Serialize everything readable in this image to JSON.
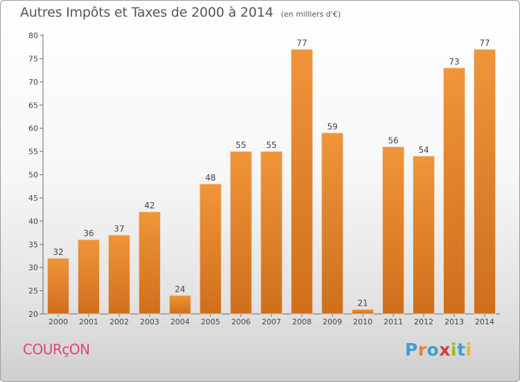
{
  "chart_data": {
    "type": "bar",
    "title": "Autres Impôts et Taxes de 2000 à 2014",
    "subtitle": "(en milliers d'€)",
    "categories": [
      "2000",
      "2001",
      "2002",
      "2003",
      "2004",
      "2005",
      "2006",
      "2007",
      "2008",
      "2009",
      "2010",
      "2011",
      "2012",
      "2013",
      "2014"
    ],
    "values": [
      32,
      36,
      37,
      42,
      24,
      48,
      55,
      55,
      77,
      59,
      21,
      56,
      54,
      73,
      77
    ],
    "data_labels": [
      "32",
      "36",
      "37",
      "42",
      "24",
      "48",
      "55",
      "55",
      "77",
      "59",
      "21",
      "56",
      "54",
      "73",
      "77"
    ],
    "ylim": [
      20,
      80
    ],
    "yticks": [
      20,
      25,
      30,
      35,
      40,
      45,
      50,
      55,
      60,
      65,
      70,
      75,
      80
    ],
    "xlabel": "",
    "ylabel": "",
    "grid": false,
    "bar_color": "#f0953a",
    "bar_color_dark": "#cf6f1c"
  },
  "footer": {
    "town": "COURçON",
    "logo_letters": [
      {
        "ch": "P",
        "color": "#3aa0d8"
      },
      {
        "ch": "r",
        "color": "#e8822a"
      },
      {
        "ch": "o",
        "color": "#3aa0d8"
      },
      {
        "ch": "x",
        "color": "#d73a3a"
      },
      {
        "ch": "i",
        "color": "#8fbf2e"
      },
      {
        "ch": "t",
        "color": "#3aa0d8"
      },
      {
        "ch": "i",
        "color": "#f2b51c"
      }
    ]
  }
}
